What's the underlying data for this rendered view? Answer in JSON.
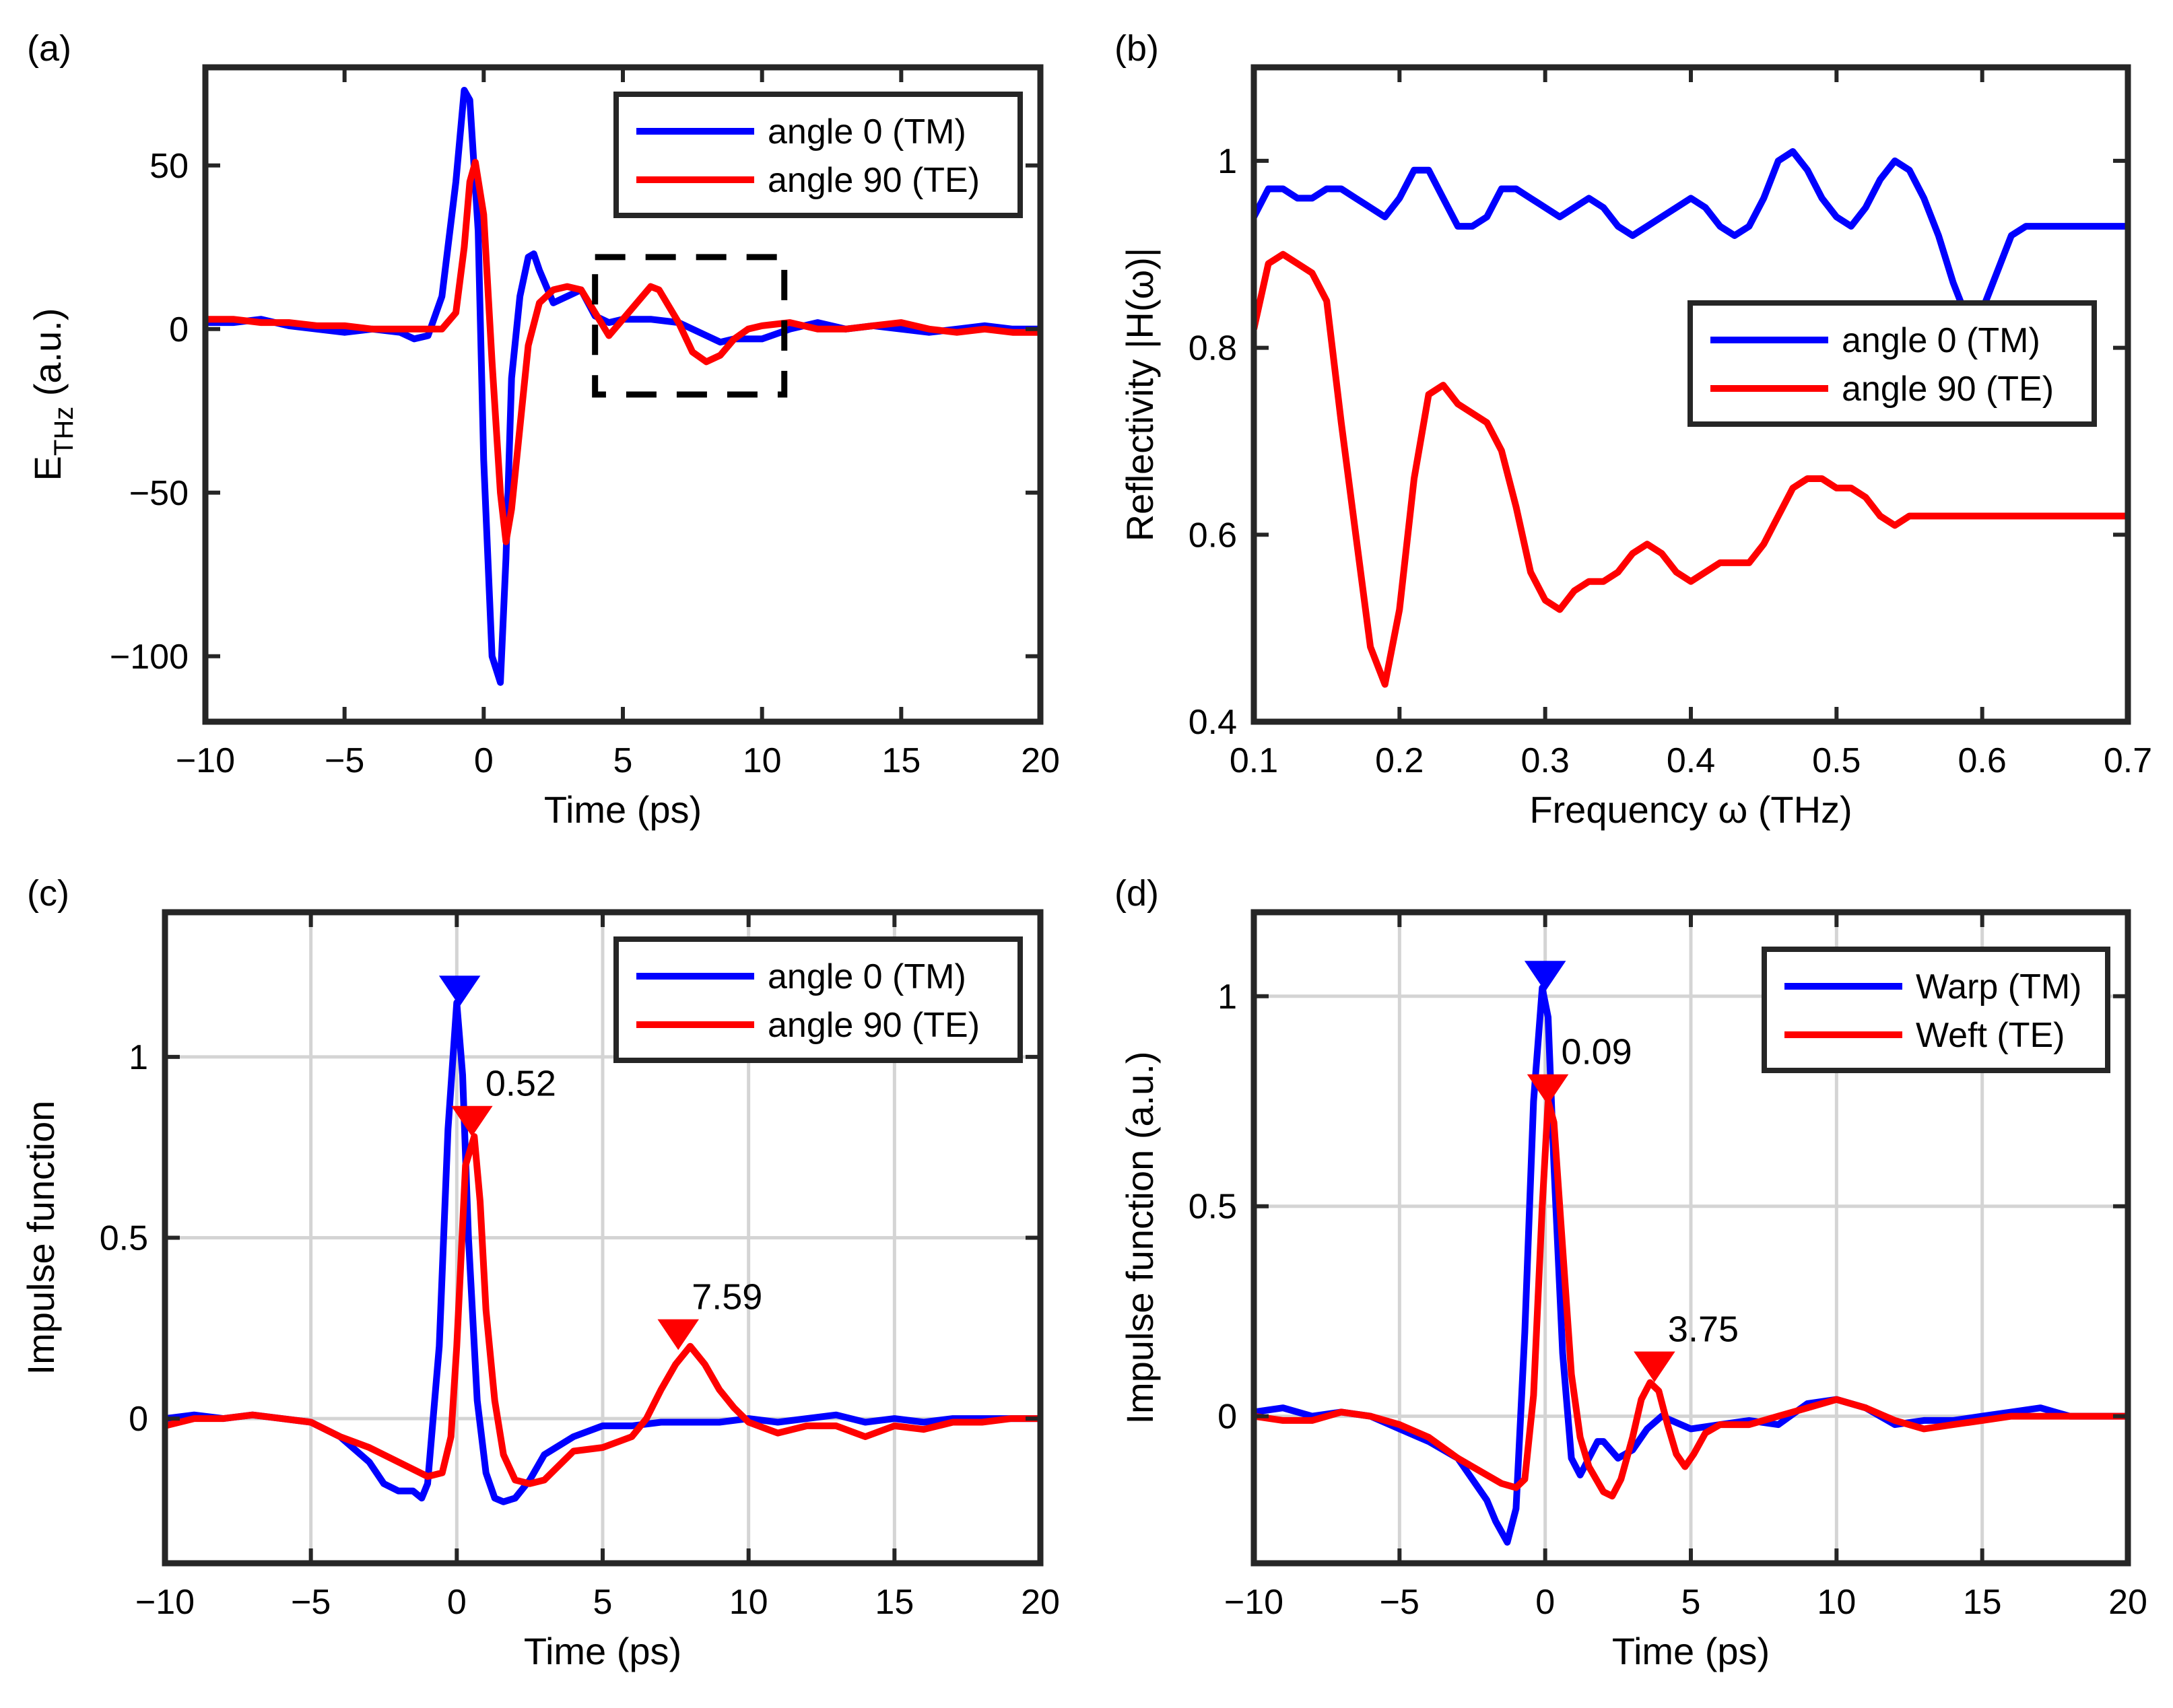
{
  "chart_data": [
    {
      "type": "line",
      "panel_label": "(a)",
      "xlabel": "Time (ps)",
      "ylabel_main": "E",
      "ylabel_sub": "THz",
      "ylabel_tail": " (a.u.)",
      "xlim": [
        -10,
        20
      ],
      "ylim": [
        -120,
        80
      ],
      "xticks": [
        -10,
        -5,
        0,
        5,
        10,
        15,
        20
      ],
      "xtick_labels": [
        "−10",
        "−5",
        "0",
        "5",
        "10",
        "15",
        "20"
      ],
      "yticks": [
        -100,
        -50,
        0,
        50
      ],
      "ytick_labels": [
        "−100",
        "−50",
        "0",
        "50"
      ],
      "grid": false,
      "legend_position": "top-right",
      "annotation_box": {
        "x": [
          4,
          10.8
        ],
        "y": [
          -20,
          22
        ],
        "style": "dashed"
      },
      "series": [
        {
          "name": "angle 0 (TM)",
          "color": "#0000ff",
          "x": [
            -10,
            -9,
            -8,
            -7,
            -6,
            -5,
            -4,
            -3,
            -2.5,
            -2,
            -1.5,
            -1,
            -0.7,
            -0.5,
            -0.2,
            0,
            0.3,
            0.6,
            0.8,
            1,
            1.3,
            1.6,
            1.8,
            2,
            2.5,
            3,
            3.5,
            4,
            4.5,
            5,
            6,
            7,
            8,
            8.5,
            9,
            10,
            11,
            12,
            13,
            14,
            15,
            16,
            17,
            18,
            19,
            20
          ],
          "y": [
            2,
            2,
            3,
            1,
            0,
            -1,
            0,
            -1,
            -3,
            -2,
            10,
            45,
            73,
            70,
            30,
            -40,
            -100,
            -108,
            -70,
            -15,
            10,
            22,
            23,
            18,
            8,
            10,
            12,
            4,
            2,
            3,
            3,
            2,
            -2,
            -4,
            -3,
            -3,
            0,
            2,
            0,
            1,
            0,
            -1,
            0,
            1,
            0,
            0
          ]
        },
        {
          "name": "angle 90 (TE)",
          "color": "#ff0000",
          "x": [
            -10,
            -9,
            -8,
            -7,
            -6,
            -5,
            -4,
            -3,
            -2,
            -1.5,
            -1,
            -0.7,
            -0.5,
            -0.3,
            0,
            0.3,
            0.6,
            0.8,
            1,
            1.3,
            1.6,
            2,
            2.5,
            3,
            3.5,
            4,
            4.5,
            5,
            5.5,
            6,
            6.3,
            7,
            7.5,
            8,
            8.5,
            9,
            9.5,
            10,
            11,
            12,
            13,
            14,
            15,
            16,
            17,
            18,
            19,
            20
          ],
          "y": [
            3,
            3,
            2,
            2,
            1,
            1,
            0,
            0,
            0,
            0,
            5,
            25,
            45,
            51,
            35,
            -10,
            -50,
            -65,
            -55,
            -30,
            -5,
            8,
            12,
            13,
            12,
            5,
            -2,
            3,
            8,
            13,
            12,
            2,
            -7,
            -10,
            -8,
            -3,
            0,
            1,
            2,
            0,
            0,
            1,
            2,
            0,
            -1,
            0,
            -1,
            -1
          ]
        }
      ]
    },
    {
      "type": "line",
      "panel_label": "(b)",
      "xlabel": "Frequency ω (THz)",
      "ylabel": "Reflectivity |H(ω)|",
      "xlim": [
        0.1,
        0.7
      ],
      "ylim": [
        0.4,
        1.1
      ],
      "xticks": [
        0.1,
        0.2,
        0.3,
        0.4,
        0.5,
        0.6,
        0.7
      ],
      "xtick_labels": [
        "0.1",
        "0.2",
        "0.3",
        "0.4",
        "0.5",
        "0.6",
        "0.7"
      ],
      "yticks": [
        0.4,
        0.6,
        0.8,
        1.0
      ],
      "ytick_labels": [
        "0.4",
        "0.6",
        "0.8",
        "1"
      ],
      "grid": false,
      "legend_position": "center-right",
      "series": [
        {
          "name": "angle 0 (TM)",
          "color": "#0000ff",
          "x": [
            0.1,
            0.11,
            0.12,
            0.13,
            0.14,
            0.15,
            0.16,
            0.17,
            0.18,
            0.19,
            0.2,
            0.21,
            0.22,
            0.23,
            0.24,
            0.25,
            0.26,
            0.27,
            0.28,
            0.29,
            0.3,
            0.31,
            0.32,
            0.33,
            0.34,
            0.35,
            0.36,
            0.37,
            0.38,
            0.39,
            0.4,
            0.41,
            0.42,
            0.43,
            0.44,
            0.45,
            0.46,
            0.47,
            0.48,
            0.49,
            0.5,
            0.51,
            0.52,
            0.53,
            0.54,
            0.55,
            0.56,
            0.57,
            0.58,
            0.59,
            0.6,
            0.61,
            0.62,
            0.63,
            0.64,
            0.65,
            0.66,
            0.67,
            0.68,
            0.69,
            0.7
          ],
          "y": [
            0.94,
            0.97,
            0.97,
            0.96,
            0.96,
            0.97,
            0.97,
            0.96,
            0.95,
            0.94,
            0.96,
            0.99,
            0.99,
            0.96,
            0.93,
            0.93,
            0.94,
            0.97,
            0.97,
            0.96,
            0.95,
            0.94,
            0.95,
            0.96,
            0.95,
            0.93,
            0.92,
            0.93,
            0.94,
            0.95,
            0.96,
            0.95,
            0.93,
            0.92,
            0.93,
            0.96,
            1.0,
            1.01,
            0.99,
            0.96,
            0.94,
            0.93,
            0.95,
            0.98,
            1.0,
            0.99,
            0.96,
            0.92,
            0.87,
            0.83,
            0.84,
            0.88,
            0.92,
            0.93,
            0.93,
            0.93,
            0.93,
            0.93,
            0.93,
            0.93,
            0.93
          ]
        },
        {
          "name": "angle 90 (TE)",
          "color": "#ff0000",
          "x": [
            0.1,
            0.11,
            0.12,
            0.13,
            0.14,
            0.15,
            0.16,
            0.17,
            0.18,
            0.19,
            0.2,
            0.21,
            0.22,
            0.23,
            0.24,
            0.25,
            0.26,
            0.27,
            0.28,
            0.29,
            0.3,
            0.31,
            0.32,
            0.33,
            0.34,
            0.35,
            0.36,
            0.37,
            0.38,
            0.39,
            0.4,
            0.41,
            0.42,
            0.43,
            0.44,
            0.45,
            0.46,
            0.47,
            0.48,
            0.49,
            0.5,
            0.51,
            0.52,
            0.53,
            0.54,
            0.55,
            0.56,
            0.57,
            0.58,
            0.59,
            0.6,
            0.61,
            0.62,
            0.63,
            0.64,
            0.65,
            0.66,
            0.67,
            0.68,
            0.69,
            0.7
          ],
          "y": [
            0.82,
            0.89,
            0.9,
            0.89,
            0.88,
            0.85,
            0.72,
            0.6,
            0.48,
            0.44,
            0.52,
            0.66,
            0.75,
            0.76,
            0.74,
            0.73,
            0.72,
            0.69,
            0.63,
            0.56,
            0.53,
            0.52,
            0.54,
            0.55,
            0.55,
            0.56,
            0.58,
            0.59,
            0.58,
            0.56,
            0.55,
            0.56,
            0.57,
            0.57,
            0.57,
            0.59,
            0.62,
            0.65,
            0.66,
            0.66,
            0.65,
            0.65,
            0.64,
            0.62,
            0.61,
            0.62,
            0.62,
            0.62,
            0.62,
            0.62,
            0.62,
            0.62,
            0.62,
            0.62,
            0.62,
            0.62,
            0.62,
            0.62,
            0.62,
            0.62,
            0.62
          ]
        }
      ]
    },
    {
      "type": "line",
      "panel_label": "(c)",
      "xlabel": "Time (ps)",
      "ylabel": "Impulse function",
      "xlim": [
        -10,
        20
      ],
      "ylim": [
        -0.4,
        1.4
      ],
      "xticks": [
        -10,
        -5,
        0,
        5,
        10,
        15,
        20
      ],
      "xtick_labels": [
        "−10",
        "−5",
        "0",
        "5",
        "10",
        "15",
        "20"
      ],
      "yticks": [
        0,
        0.5,
        1
      ],
      "ytick_labels": [
        "0",
        "0.5",
        "1"
      ],
      "grid": true,
      "legend_position": "top-right",
      "series": [
        {
          "name": "angle 0 (TM)",
          "color": "#0000ff",
          "x": [
            -10,
            -9,
            -8,
            -7,
            -6,
            -5,
            -4,
            -3,
            -2.5,
            -2,
            -1.5,
            -1.2,
            -1,
            -0.6,
            -0.3,
            0,
            0.2,
            0.4,
            0.7,
            1,
            1.3,
            1.6,
            2,
            2.5,
            3,
            4,
            5,
            6,
            7,
            8,
            9,
            10,
            11,
            12,
            13,
            14,
            15,
            16,
            17,
            18,
            19,
            20
          ],
          "y": [
            0,
            0.01,
            0,
            0.01,
            0,
            -0.01,
            -0.05,
            -0.12,
            -0.18,
            -0.2,
            -0.2,
            -0.22,
            -0.18,
            0.2,
            0.8,
            1.15,
            0.95,
            0.5,
            0.05,
            -0.15,
            -0.22,
            -0.23,
            -0.22,
            -0.17,
            -0.1,
            -0.05,
            -0.02,
            -0.02,
            -0.01,
            -0.01,
            -0.01,
            0,
            -0.01,
            0,
            0.01,
            -0.01,
            0,
            -0.01,
            0,
            0,
            0,
            0
          ]
        },
        {
          "name": "angle 90 (TE)",
          "color": "#ff0000",
          "x": [
            -10,
            -9,
            -8,
            -7,
            -6,
            -5,
            -4,
            -3,
            -2,
            -1,
            -0.5,
            -0.2,
            0,
            0.3,
            0.6,
            0.8,
            1,
            1.3,
            1.6,
            2,
            2.5,
            3,
            3.5,
            4,
            5,
            6,
            6.5,
            7,
            7.5,
            8,
            8.5,
            9,
            9.5,
            10,
            11,
            12,
            13,
            14,
            15,
            16,
            17,
            18,
            19,
            20
          ],
          "y": [
            -0.02,
            0,
            0,
            0.01,
            0,
            -0.01,
            -0.05,
            -0.08,
            -0.12,
            -0.16,
            -0.15,
            -0.05,
            0.2,
            0.7,
            0.78,
            0.6,
            0.3,
            0.05,
            -0.1,
            -0.17,
            -0.18,
            -0.17,
            -0.13,
            -0.09,
            -0.08,
            -0.05,
            0,
            0.08,
            0.15,
            0.2,
            0.15,
            0.08,
            0.03,
            -0.01,
            -0.04,
            -0.02,
            -0.02,
            -0.05,
            -0.02,
            -0.03,
            -0.01,
            -0.01,
            0,
            0
          ]
        }
      ],
      "markers": [
        {
          "series": 0,
          "x": 0.1,
          "y": 1.15,
          "color": "#0000ff",
          "label": ""
        },
        {
          "series": 1,
          "x": 0.52,
          "y": 0.79,
          "color": "#ff0000",
          "label": "0.52"
        },
        {
          "series": 1,
          "x": 7.59,
          "y": 0.2,
          "color": "#ff0000",
          "label": "7.59"
        }
      ]
    },
    {
      "type": "line",
      "panel_label": "(d)",
      "xlabel": "Time (ps)",
      "ylabel": "Impulse function (a.u.)",
      "xlim": [
        -10,
        20
      ],
      "ylim": [
        -0.35,
        1.2
      ],
      "xticks": [
        -10,
        -5,
        0,
        5,
        10,
        15,
        20
      ],
      "xtick_labels": [
        "−10",
        "−5",
        "0",
        "5",
        "10",
        "15",
        "20"
      ],
      "yticks": [
        0,
        0.5,
        1
      ],
      "ytick_labels": [
        "0",
        "0.5",
        "1"
      ],
      "grid": true,
      "legend_position": "top-right",
      "series": [
        {
          "name": "Warp (TM)",
          "color": "#0000ff",
          "x": [
            -10,
            -9,
            -8,
            -7,
            -6,
            -5,
            -4,
            -3,
            -2.5,
            -2,
            -1.7,
            -1.3,
            -1,
            -0.7,
            -0.4,
            -0.1,
            0.1,
            0.3,
            0.6,
            0.9,
            1.2,
            1.5,
            1.8,
            2,
            2.5,
            3,
            3.5,
            4,
            5,
            6,
            7,
            8,
            9,
            10,
            11,
            12,
            13,
            14,
            15,
            16,
            17,
            18,
            19,
            20
          ],
          "y": [
            0.01,
            0.02,
            0,
            0.01,
            0,
            -0.03,
            -0.06,
            -0.1,
            -0.15,
            -0.2,
            -0.25,
            -0.3,
            -0.22,
            0.2,
            0.75,
            1.02,
            0.95,
            0.6,
            0.15,
            -0.1,
            -0.14,
            -0.1,
            -0.06,
            -0.06,
            -0.1,
            -0.08,
            -0.03,
            0,
            -0.03,
            -0.02,
            -0.01,
            -0.02,
            0.03,
            0.04,
            0.02,
            -0.02,
            -0.01,
            -0.01,
            0,
            0.01,
            0.02,
            0,
            0,
            0
          ]
        },
        {
          "name": "Weft (TE)",
          "color": "#ff0000",
          "x": [
            -10,
            -9,
            -8,
            -7,
            -6,
            -5,
            -4,
            -3,
            -2,
            -1.5,
            -1,
            -0.7,
            -0.4,
            -0.1,
            0.1,
            0.3,
            0.6,
            0.9,
            1.2,
            1.5,
            2,
            2.3,
            2.6,
            3,
            3.3,
            3.6,
            3.9,
            4.2,
            4.5,
            4.8,
            5.1,
            5.5,
            6,
            6.5,
            7,
            8,
            9,
            10,
            11,
            12,
            13,
            14,
            15,
            16,
            17,
            18,
            19,
            20
          ],
          "y": [
            0,
            -0.01,
            -0.01,
            0.01,
            0,
            -0.02,
            -0.05,
            -0.1,
            -0.14,
            -0.16,
            -0.17,
            -0.15,
            0.05,
            0.5,
            0.75,
            0.7,
            0.4,
            0.1,
            -0.05,
            -0.12,
            -0.18,
            -0.19,
            -0.15,
            -0.05,
            0.04,
            0.08,
            0.06,
            -0.02,
            -0.09,
            -0.12,
            -0.09,
            -0.04,
            -0.02,
            -0.02,
            -0.02,
            0,
            0.02,
            0.04,
            0.02,
            -0.01,
            -0.03,
            -0.02,
            -0.01,
            0,
            0,
            0,
            0,
            0
          ]
        }
      ],
      "markers": [
        {
          "series": 0,
          "x": 0.0,
          "y": 1.02,
          "color": "#0000ff",
          "label": ""
        },
        {
          "series": 1,
          "x": 0.09,
          "y": 0.75,
          "color": "#ff0000",
          "label": "0.09"
        },
        {
          "series": 1,
          "x": 3.75,
          "y": 0.09,
          "color": "#ff0000",
          "label": "3.75"
        }
      ]
    }
  ]
}
